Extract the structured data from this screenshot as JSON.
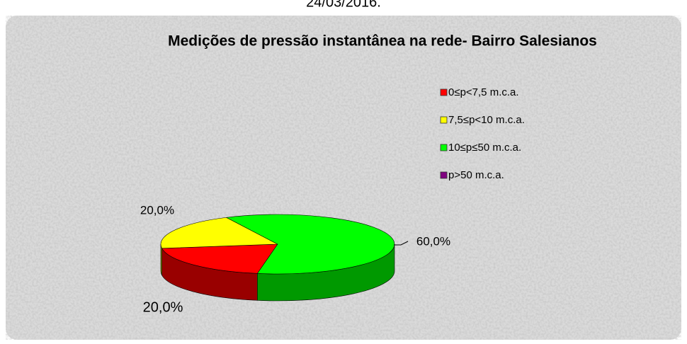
{
  "chart_data": {
    "type": "pie3d",
    "date": "24/03/2016.",
    "title": "Medições de pressão instantânea na rede- Bairro Salesianos",
    "categories": [
      "0≤p<7,5 m.c.a.",
      "7,5≤p<10 m.c.a.",
      "10≤p≤50 m.c.a.",
      "p>50 m.c.a."
    ],
    "values": [
      20,
      20,
      60,
      0
    ],
    "value_labels": [
      "20,0%",
      "20,0%",
      "60,0%",
      null
    ],
    "colors": [
      "#ff0000",
      "#ffff00",
      "#00ff00",
      "#800080"
    ],
    "legend": "right"
  }
}
